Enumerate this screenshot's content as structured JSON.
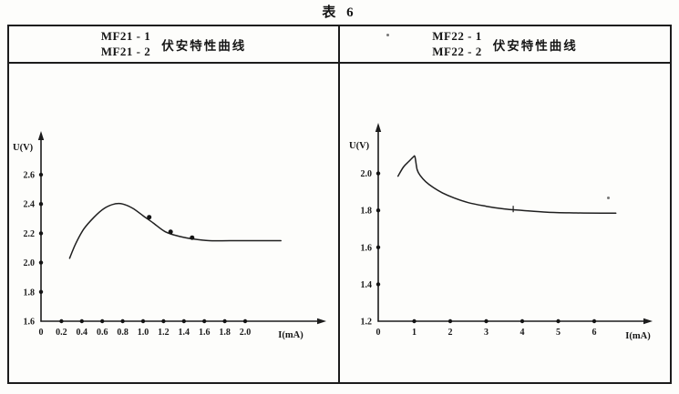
{
  "page_title": "表 6",
  "panels": [
    {
      "models_line1": "MF21 - 1",
      "models_line2": "MF21 - 2",
      "curve_label": "伏安特性曲线"
    },
    {
      "models_line1": "MF22 - 1",
      "models_line2": "MF22 - 2",
      "curve_label": "伏安特性曲线"
    }
  ],
  "chart_data": [
    {
      "type": "line",
      "title": "MF21-1 / MF21-2 伏安特性曲线",
      "xlabel": "I(mA)",
      "ylabel": "U(V)",
      "xlim": [
        0,
        2.55
      ],
      "ylim": [
        1.6,
        2.75
      ],
      "grid": false,
      "legend": "none",
      "x_tick_values": [
        0,
        0.2,
        0.4,
        0.6,
        0.8,
        1.0,
        1.2,
        1.4,
        1.6,
        1.8,
        2.0
      ],
      "x_tick_labels": [
        "0",
        "0.2",
        "0.4",
        "0.6",
        "0.8",
        "1.0",
        "1.2",
        "1.4",
        "1.6",
        "1.8",
        "2.0"
      ],
      "y_tick_values": [
        1.6,
        1.8,
        2.0,
        2.2,
        2.4,
        2.6
      ],
      "y_tick_labels": [
        "1.6",
        "1.8",
        "2.0",
        "2.2",
        "2.4",
        "2.6"
      ],
      "series": [
        {
          "name": "MF21 伏安特性曲线",
          "x": [
            0.28,
            0.34,
            0.42,
            0.52,
            0.62,
            0.72,
            0.8,
            0.9,
            1.0,
            1.1,
            1.22,
            1.35,
            1.5,
            1.65,
            1.85,
            2.1,
            2.35
          ],
          "y": [
            2.03,
            2.13,
            2.23,
            2.31,
            2.37,
            2.4,
            2.4,
            2.37,
            2.32,
            2.27,
            2.21,
            2.18,
            2.16,
            2.15,
            2.15,
            2.15,
            2.15
          ]
        }
      ],
      "marked_points": [
        {
          "x": 1.06,
          "y": 2.31
        },
        {
          "x": 1.27,
          "y": 2.21
        },
        {
          "x": 1.48,
          "y": 2.17
        }
      ],
      "tick_marks": []
    },
    {
      "type": "line",
      "title": "MF22-1 / MF22-2 伏安特性曲线",
      "xlabel": "I(mA)",
      "ylabel": "U(V)",
      "xlim": [
        0,
        7.4
      ],
      "ylim": [
        1.2,
        2.3
      ],
      "grid": false,
      "legend": "none",
      "x_tick_values": [
        0,
        1,
        2,
        3,
        4,
        5,
        6
      ],
      "x_tick_labels": [
        "0",
        "1",
        "2",
        "3",
        "4",
        "5",
        "6"
      ],
      "y_tick_values": [
        1.2,
        1.4,
        1.6,
        1.8,
        2.0
      ],
      "y_tick_labels": [
        "1.2",
        "1.4",
        "1.6",
        "1.8",
        "2.0"
      ],
      "series": [
        {
          "name": "MF22 伏安特性曲线",
          "x": [
            0.55,
            0.7,
            0.85,
            0.97,
            1.02,
            1.08,
            1.18,
            1.32,
            1.52,
            1.78,
            2.1,
            2.5,
            3.0,
            3.5,
            4.0,
            4.7,
            5.5,
            6.2,
            6.6
          ],
          "y": [
            1.985,
            2.035,
            2.065,
            2.088,
            2.09,
            2.02,
            1.985,
            1.955,
            1.925,
            1.895,
            1.868,
            1.842,
            1.822,
            1.808,
            1.8,
            1.79,
            1.786,
            1.785,
            1.785
          ]
        }
      ],
      "marked_points": [],
      "tick_marks": [
        {
          "x": 3.75,
          "y": 1.8
        }
      ]
    }
  ]
}
